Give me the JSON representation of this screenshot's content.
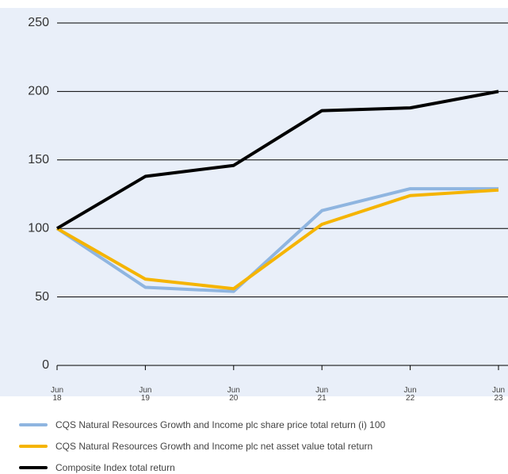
{
  "chart_data": {
    "type": "line",
    "categories": [
      "Jun 18",
      "Jun 19",
      "Jun 20",
      "Jun 21",
      "Jun 22",
      "Jun 23"
    ],
    "series": [
      {
        "name": "CQS Natural Resources Growth and Income plc share price total return (i) 100",
        "color": "#8fb5e0",
        "values": [
          100,
          57,
          54,
          113,
          129,
          129
        ]
      },
      {
        "name": "CQS Natural Resources Growth and Income plc net asset value total return",
        "color": "#f5b400",
        "values": [
          100,
          63,
          56,
          103,
          124,
          128
        ]
      },
      {
        "name": "Composite Index total return",
        "color": "#000000",
        "values": [
          100,
          138,
          146,
          186,
          188,
          200
        ]
      }
    ],
    "ylim": [
      0,
      250
    ],
    "yticks": [
      0,
      50,
      100,
      150,
      200,
      250
    ],
    "grid": true
  }
}
